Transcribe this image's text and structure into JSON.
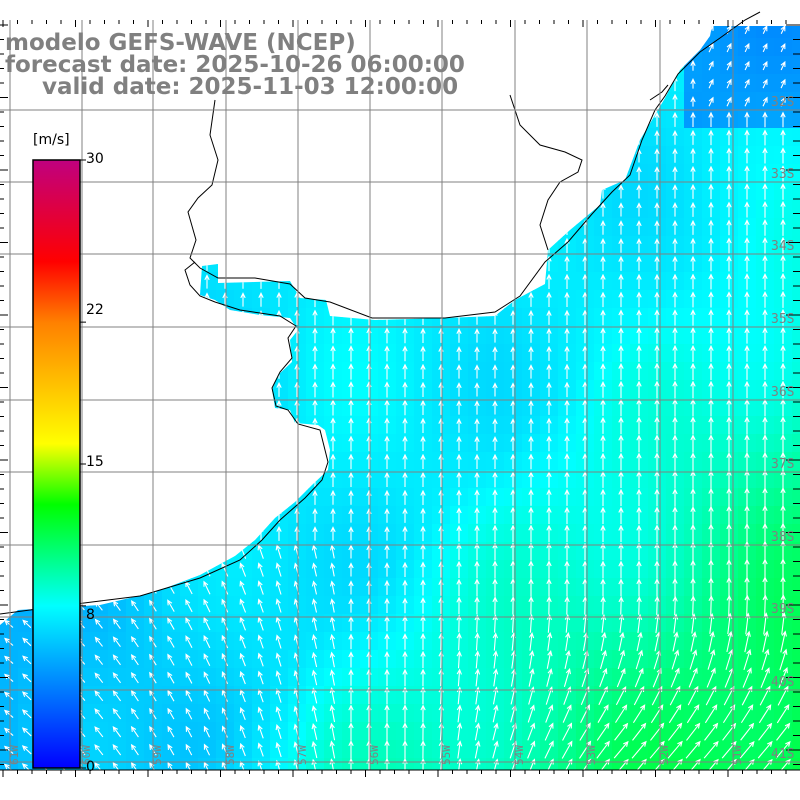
{
  "title": {
    "line1": "modelo GEFS-WAVE (NCEP)",
    "line2": "forecast date: 2025-10-26 06:00:00",
    "line3": "valid date: 2025-11-03 12:00:00"
  },
  "colorbar": {
    "unit": "[m/s]",
    "ticks": [
      {
        "label": "30",
        "value": 30
      },
      {
        "label": "22",
        "value": 22
      },
      {
        "label": "15",
        "value": 15
      },
      {
        "label": "8",
        "value": 8
      },
      {
        "label": "0",
        "value": 0
      }
    ],
    "range": [
      0,
      30
    ],
    "stops": [
      {
        "value": 0,
        "color": "#0000ff"
      },
      {
        "value": 4,
        "color": "#0080ff"
      },
      {
        "value": 8,
        "color": "#00ffff"
      },
      {
        "value": 13,
        "color": "#00ff00"
      },
      {
        "value": 16,
        "color": "#ffff00"
      },
      {
        "value": 22,
        "color": "#ff8000"
      },
      {
        "value": 25,
        "color": "#ff0000"
      },
      {
        "value": 30,
        "color": "#c0007f"
      }
    ]
  },
  "longitude_labels": [
    "61W",
    "60W",
    "59W",
    "58W",
    "57W",
    "56W",
    "55W",
    "54W",
    "53W",
    "52W",
    "51W"
  ],
  "latitude_labels": [
    "32S",
    "33S",
    "34S",
    "35S",
    "36S",
    "37S",
    "38S",
    "39S",
    "40S",
    "41S"
  ],
  "colors": {
    "label": "#808080",
    "grid": "#808080",
    "land": "#ffffff",
    "coast": "#000000",
    "arrow": "#ffffff"
  }
}
